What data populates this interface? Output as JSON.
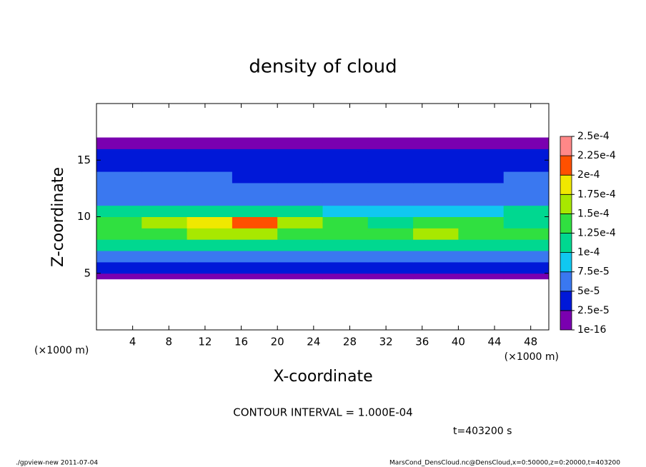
{
  "chart_data": {
    "type": "heatmap",
    "title": "density of cloud",
    "xlabel": "X-coordinate",
    "ylabel": "Z-coordinate",
    "xunit": "(×1000 m)",
    "xunit_right": "(×1000 m)",
    "xlim": [
      0,
      50
    ],
    "ylim": [
      0,
      20
    ],
    "xticks": [
      4,
      8,
      12,
      16,
      20,
      24,
      28,
      32,
      36,
      40,
      44,
      48
    ],
    "yticks": [
      5,
      10,
      15
    ],
    "field": {
      "x_edges": [
        0,
        5,
        10,
        15,
        20,
        25,
        30,
        35,
        40,
        45,
        50
      ],
      "z_edges": [
        4.5,
        5,
        6,
        7,
        8,
        9,
        10,
        11,
        12,
        13,
        14,
        15,
        16,
        17
      ],
      "values": [
        [
          1e-05,
          1e-05,
          1e-05,
          1e-05,
          1e-05,
          1e-05,
          1e-05,
          1e-05,
          1e-05,
          1e-05
        ],
        [
          3e-05,
          3e-05,
          3e-05,
          3e-05,
          3e-05,
          3e-05,
          3e-05,
          3e-05,
          3e-05,
          3e-05
        ],
        [
          6e-05,
          6e-05,
          7e-05,
          7e-05,
          6e-05,
          6e-05,
          6e-05,
          6e-05,
          6e-05,
          6e-05
        ],
        [
          0.00011,
          0.00011,
          0.00012,
          0.00012,
          0.00011,
          0.00011,
          0.00011,
          0.00012,
          0.00011,
          0.00011
        ],
        [
          0.00013,
          0.00014,
          0.00016,
          0.00016,
          0.00014,
          0.00013,
          0.00013,
          0.00015,
          0.00014,
          0.00013
        ],
        [
          0.00013,
          0.00015,
          0.00018,
          0.0002,
          0.00015,
          0.00013,
          0.00012,
          0.00014,
          0.00013,
          0.00012
        ],
        [
          0.0001,
          0.0001,
          0.00011,
          0.00011,
          0.0001,
          9e-05,
          9e-05,
          9e-05,
          9e-05,
          0.0001
        ],
        [
          7e-05,
          7e-05,
          7e-05,
          6e-05,
          6e-05,
          6e-05,
          6e-05,
          6e-05,
          6e-05,
          6e-05
        ],
        [
          5.5e-05,
          5.5e-05,
          5e-05,
          5e-05,
          5e-05,
          5e-05,
          5e-05,
          5e-05,
          5e-05,
          5.5e-05
        ],
        [
          5e-05,
          5e-05,
          5e-05,
          4.5e-05,
          4.5e-05,
          4.5e-05,
          4e-05,
          4.5e-05,
          4.5e-05,
          5e-05
        ],
        [
          4.5e-05,
          4.5e-05,
          4.5e-05,
          4e-05,
          4e-05,
          4e-05,
          4e-05,
          4e-05,
          4.5e-05,
          4.5e-05
        ],
        [
          4e-05,
          4e-05,
          4e-05,
          4e-05,
          4e-05,
          4e-05,
          4e-05,
          4e-05,
          4e-05,
          4e-05
        ],
        [
          1e-05,
          1e-05,
          1e-05,
          1e-05,
          1e-05,
          1e-05,
          1e-05,
          1e-05,
          1e-05,
          1e-05
        ]
      ]
    },
    "colorbar": {
      "ticks": [
        {
          "value": 1e-16,
          "label": "1e-16"
        },
        {
          "value": 2.5e-05,
          "label": "2.5e-5"
        },
        {
          "value": 5e-05,
          "label": "5e-5"
        },
        {
          "value": 7.5e-05,
          "label": "7.5e-5"
        },
        {
          "value": 0.0001,
          "label": "1e-4"
        },
        {
          "value": 0.000125,
          "label": "1.25e-4"
        },
        {
          "value": 0.00015,
          "label": "1.5e-4"
        },
        {
          "value": 0.000175,
          "label": "1.75e-4"
        },
        {
          "value": 0.0002,
          "label": "2e-4"
        },
        {
          "value": 0.000225,
          "label": "2.25e-4"
        },
        {
          "value": 0.00025,
          "label": "2.5e-4"
        }
      ],
      "colors": [
        "#7a00b0",
        "#0018d8",
        "#3a78f0",
        "#10c8f0",
        "#00d890",
        "#30e040",
        "#a8e800",
        "#f0e800",
        "#ff5000",
        "#ff8888"
      ]
    },
    "contour_interval": "CONTOUR INTERVAL = 1.000E-04",
    "time_label": "t=403200 s",
    "footer_left": "./gpview-new  2011-07-04",
    "footer_right": "MarsCond_DensCloud.nc@DensCloud,x=0:50000,z=0:20000,t=403200"
  }
}
